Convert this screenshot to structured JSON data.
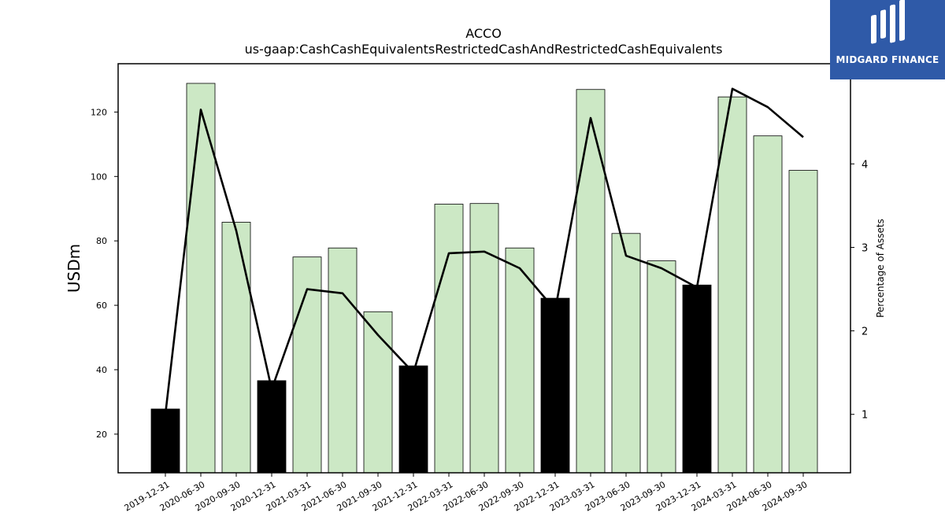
{
  "chart_data": {
    "type": "bar",
    "title": "ACCO",
    "subtitle": "us-gaap:CashCashEquivalentsRestrictedCashAndRestrictedCashEquivalents",
    "ylabel": "USDm",
    "y2label": "Percentage of Assets",
    "ylim": [
      8,
      135
    ],
    "y2lim": [
      0.3,
      5.2
    ],
    "yticks": [
      20,
      40,
      60,
      80,
      100,
      120
    ],
    "y2ticks": [
      1,
      2,
      3,
      4
    ],
    "categories": [
      "2019-12-31",
      "2020-06-30",
      "2020-09-30",
      "2020-12-31",
      "2021-03-31",
      "2021-06-30",
      "2021-09-30",
      "2021-12-31",
      "2022-03-31",
      "2022-06-30",
      "2022-09-30",
      "2022-12-31",
      "2023-03-31",
      "2023-06-30",
      "2023-09-30",
      "2023-12-31",
      "2024-03-31",
      "2024-06-30",
      "2024-09-30"
    ],
    "series": [
      {
        "type": "bar",
        "axis": "left",
        "values": [
          27.8,
          128.9,
          85.8,
          36.6,
          75.0,
          77.8,
          58.0,
          41.2,
          91.4,
          91.6,
          77.8,
          62.2,
          127.0,
          82.3,
          73.8,
          66.3,
          124.7,
          112.6,
          101.9
        ],
        "highlight": [
          true,
          false,
          false,
          true,
          false,
          false,
          false,
          true,
          false,
          false,
          false,
          true,
          false,
          false,
          false,
          true,
          false,
          false,
          false
        ]
      },
      {
        "type": "line",
        "axis": "right",
        "values": [
          1.0,
          4.65,
          3.2,
          1.3,
          2.5,
          2.45,
          1.95,
          1.5,
          2.93,
          2.95,
          2.75,
          2.25,
          4.55,
          2.9,
          2.75,
          2.52,
          4.9,
          4.68,
          4.32
        ]
      }
    ],
    "colors": {
      "bar": "#cce8c5",
      "bar_highlight": "#000000",
      "bar_edge": "#000000",
      "line": "#000000"
    },
    "grid": false,
    "legend": "none"
  },
  "logo": {
    "text": "MIDGARD FINANCE",
    "color": "#2f5aa8"
  }
}
